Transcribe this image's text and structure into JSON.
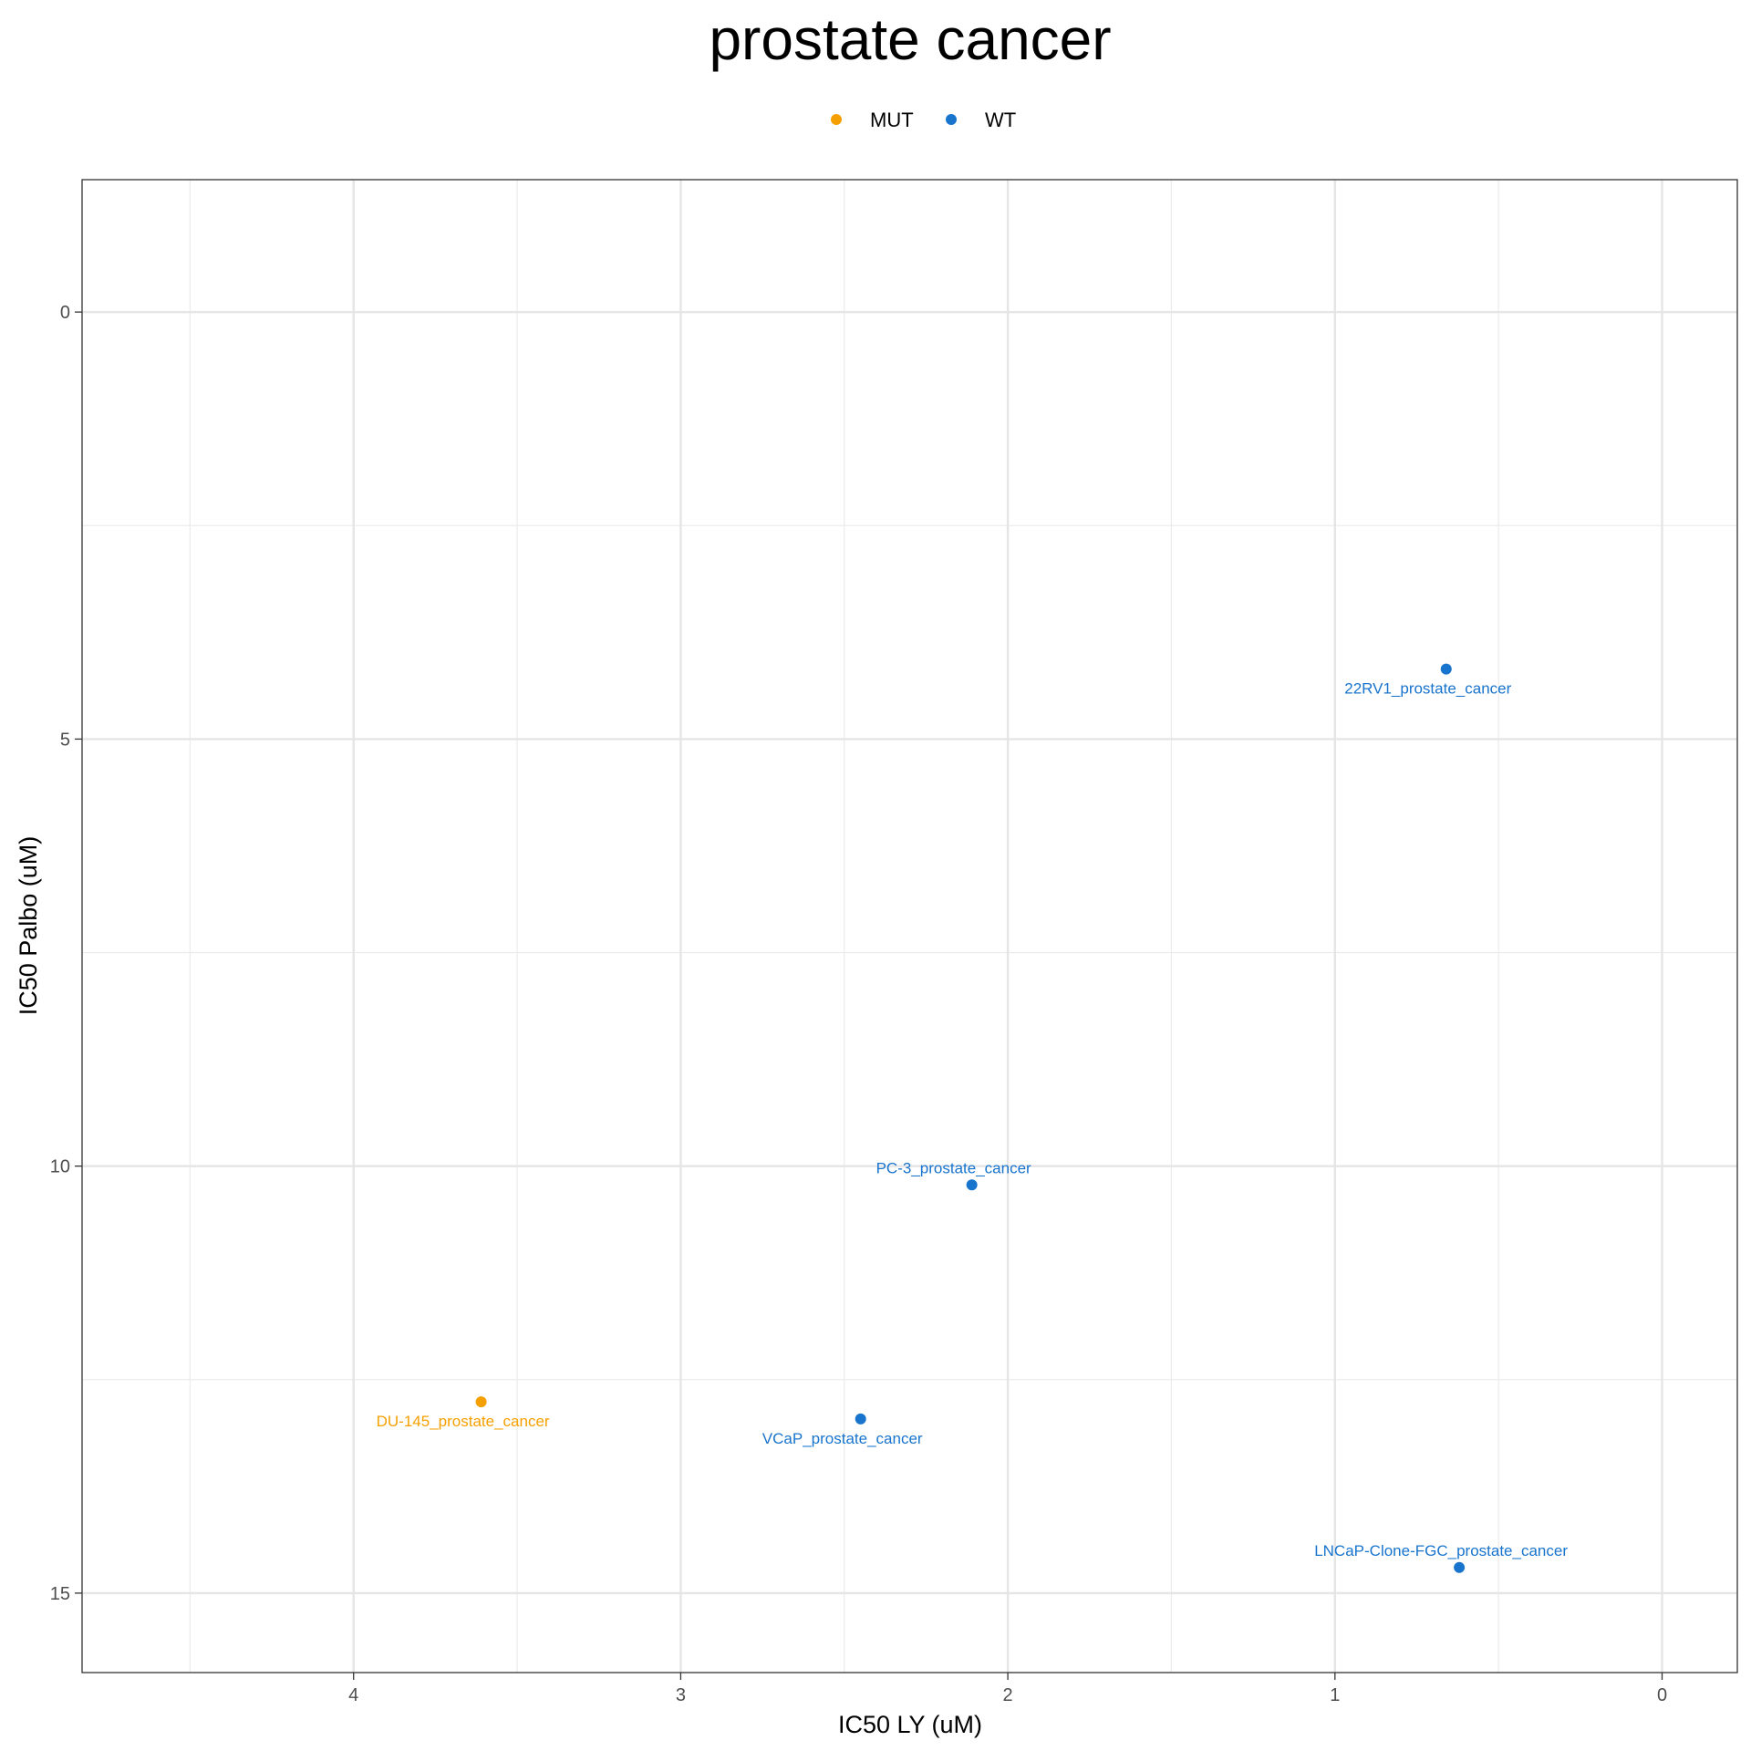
{
  "chart_data": {
    "type": "scatter",
    "title": "prostate cancer",
    "xlabel": "IC50 LY (uM)",
    "ylabel": "IC50 Palbo (uM)",
    "x_reversed": true,
    "y_reversed": true,
    "xlim": [
      4.83,
      -0.23
    ],
    "ylim": [
      -1.55,
      15.93
    ],
    "x_ticks": [
      4,
      3,
      2,
      1,
      0
    ],
    "y_ticks": [
      0,
      5,
      10,
      15
    ],
    "grid": true,
    "legend_position": "top",
    "legend": [
      {
        "name": "MUT",
        "color": "#F5A000"
      },
      {
        "name": "WT",
        "color": "#1874CD"
      }
    ],
    "series": [
      {
        "name": "MUT",
        "color": "#F5A000",
        "points": [
          {
            "x": 3.61,
            "y": 12.76,
            "label": "DU-145_prostate_cancer",
            "label_pos": "below"
          }
        ]
      },
      {
        "name": "WT",
        "color": "#1874CD",
        "points": [
          {
            "x": 0.66,
            "y": 4.18,
            "label": "22RV1_prostate_cancer",
            "label_pos": "below"
          },
          {
            "x": 2.11,
            "y": 10.22,
            "label": "PC-3_prostate_cancer",
            "label_pos": "above"
          },
          {
            "x": 2.45,
            "y": 12.96,
            "label": "VCaP_prostate_cancer",
            "label_pos": "below"
          },
          {
            "x": 0.62,
            "y": 14.7,
            "label": "LNCaP-Clone-FGC_prostate_cancer",
            "label_pos": "above"
          }
        ]
      }
    ]
  }
}
